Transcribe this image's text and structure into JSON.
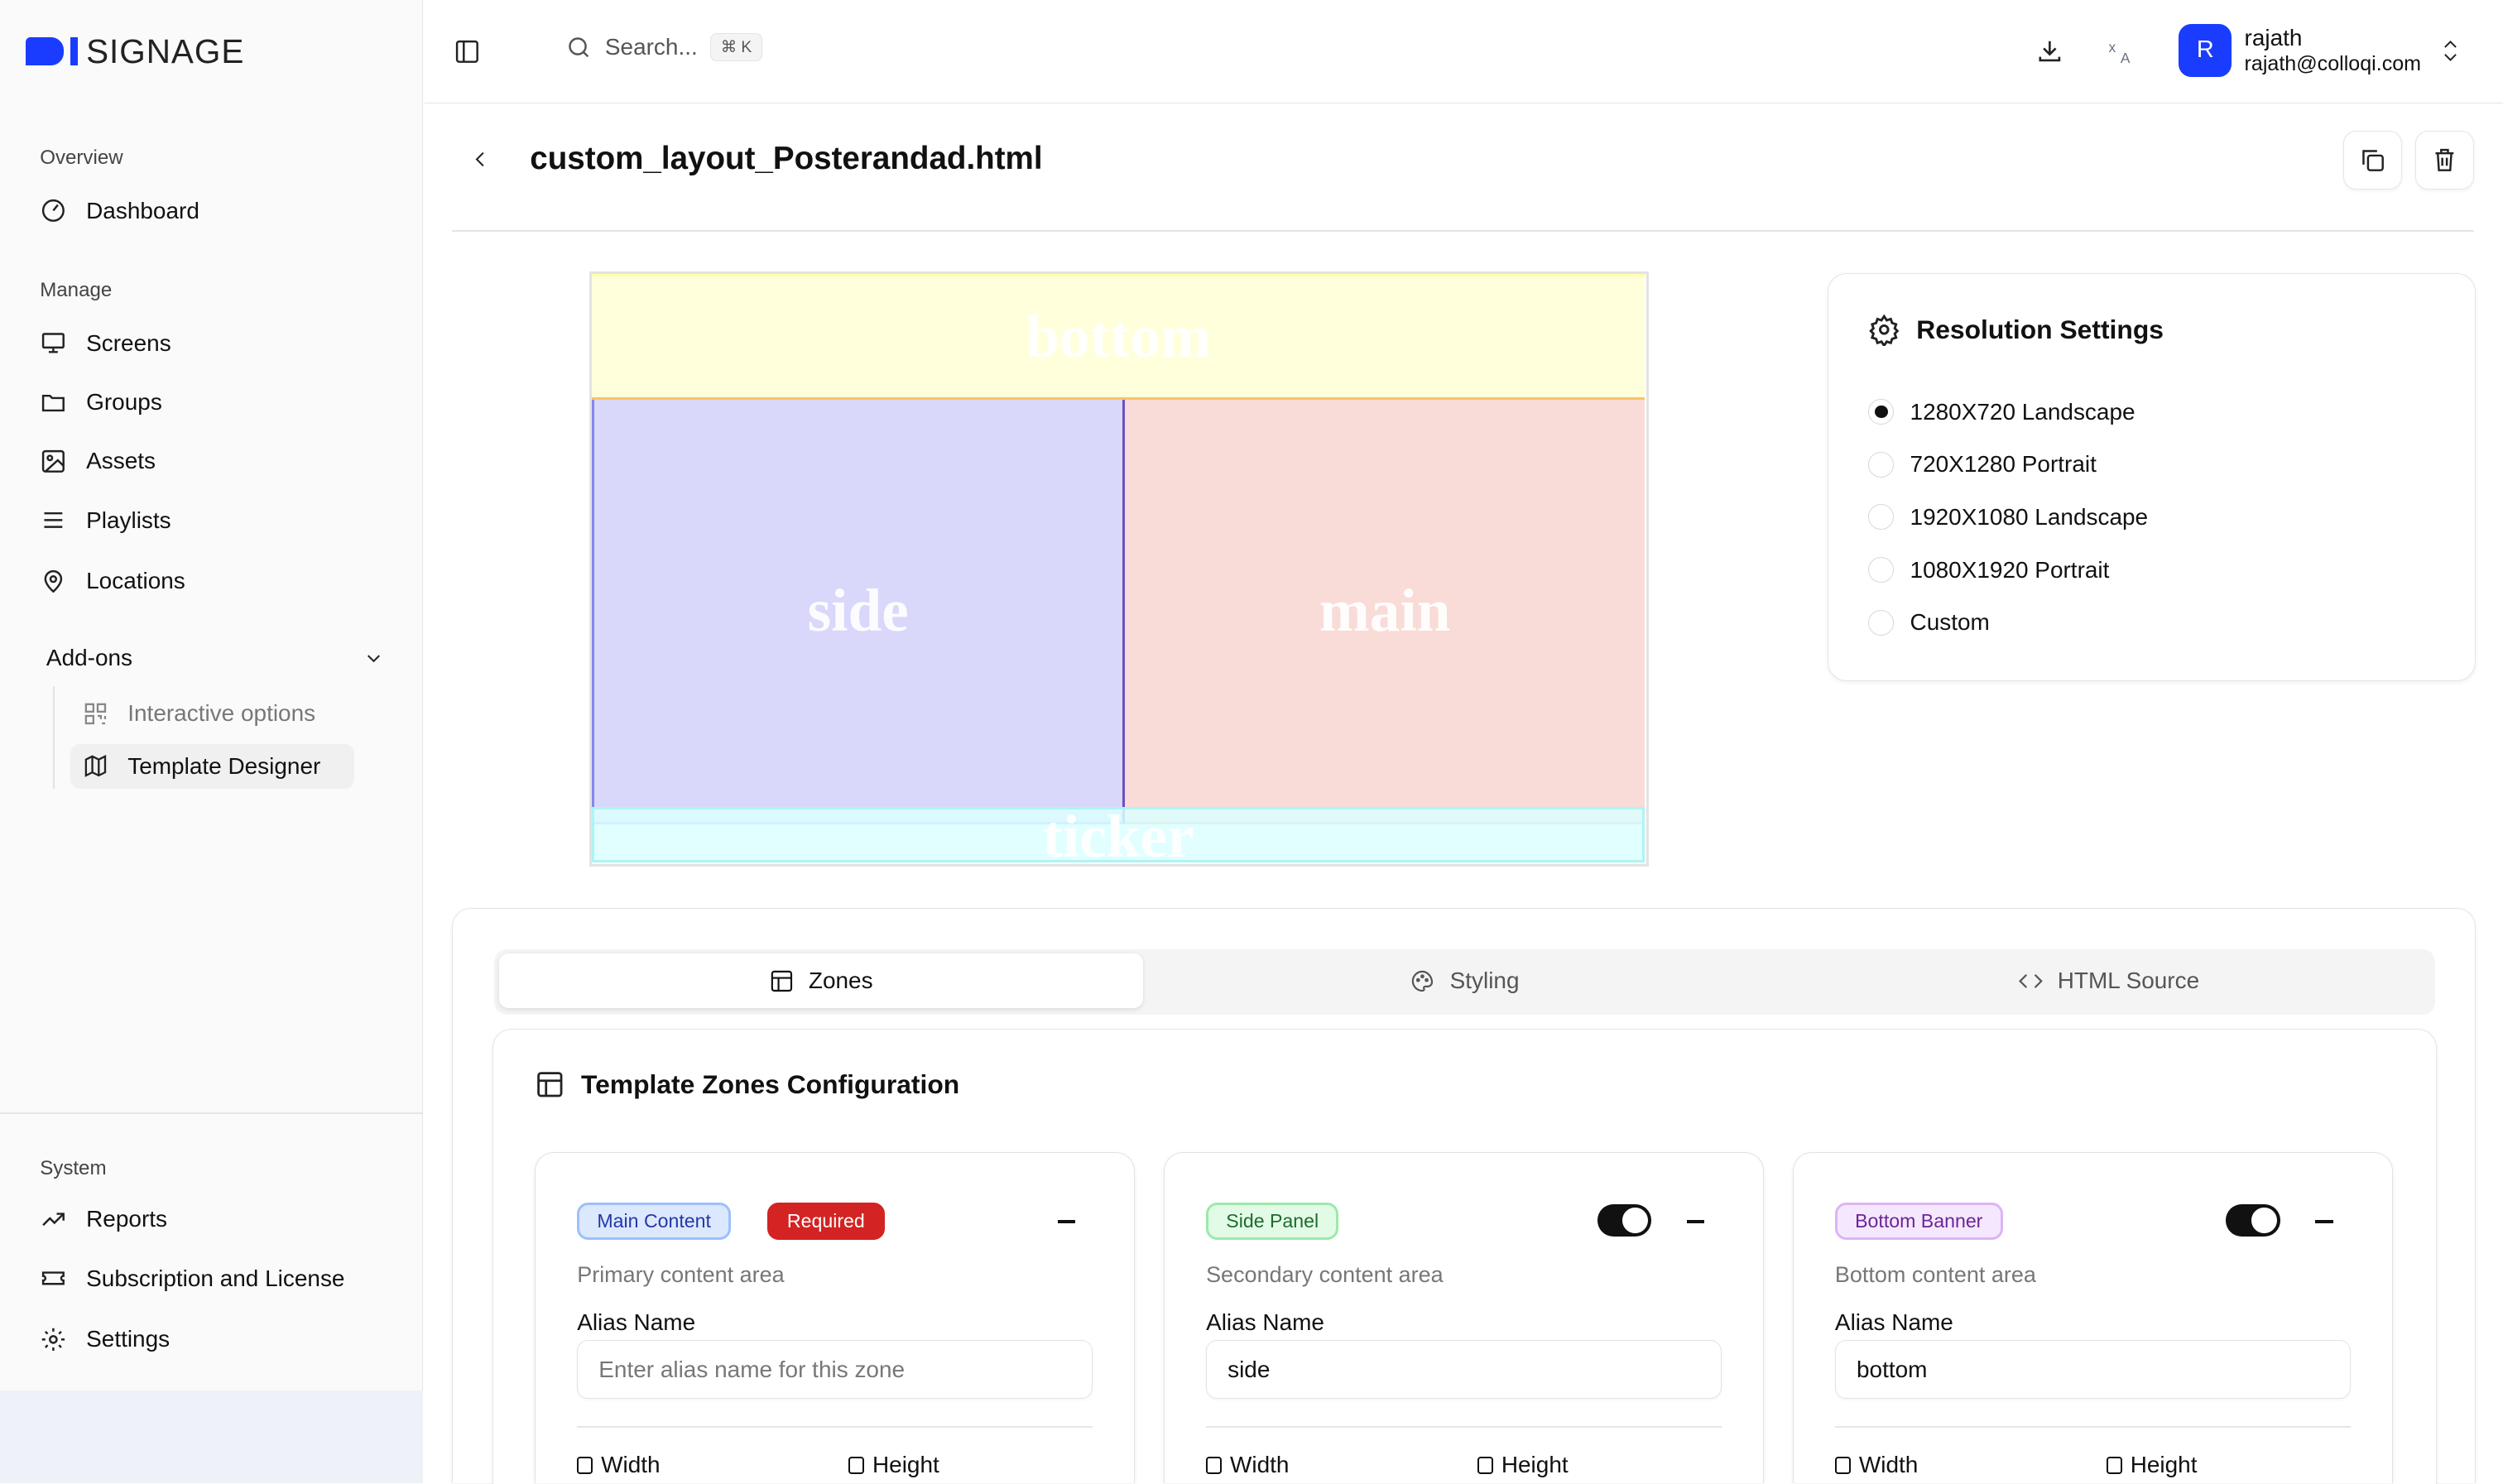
{
  "brand": {
    "logo_text": "SIGNAGE",
    "accent": "#1a3cff"
  },
  "sidebar": {
    "sections": {
      "overview": "Overview",
      "manage": "Manage",
      "system": "System"
    },
    "items": [
      {
        "label": "Dashboard",
        "icon": "gauge-icon"
      },
      {
        "label": "Screens",
        "icon": "monitor-icon"
      },
      {
        "label": "Groups",
        "icon": "folder-icon"
      },
      {
        "label": "Assets",
        "icon": "image-icon"
      },
      {
        "label": "Playlists",
        "icon": "list-icon"
      },
      {
        "label": "Locations",
        "icon": "map-pin-icon"
      }
    ],
    "addons": {
      "label": "Add-ons",
      "items": [
        {
          "label": "Interactive options",
          "icon": "qr-code-icon"
        },
        {
          "label": "Template Designer",
          "icon": "map-icon"
        }
      ]
    },
    "system_items": [
      {
        "label": "Reports",
        "icon": "trending-up-icon"
      },
      {
        "label": "Subscription and License",
        "icon": "ticket-icon"
      },
      {
        "label": "Settings",
        "icon": "gear-icon"
      }
    ]
  },
  "header": {
    "search_placeholder": "Search...",
    "shortcut": "⌘ K",
    "user": {
      "initial": "R",
      "name": "rajath",
      "email": "rajath@colloqi.com"
    }
  },
  "page": {
    "title": "custom_layout_Posterandad.html"
  },
  "preview": {
    "zones": {
      "bottom": "bottom",
      "side": "side",
      "main": "main",
      "ticker": "ticker"
    }
  },
  "resolution": {
    "title": "Resolution Settings",
    "options": [
      "1280X720 Landscape",
      "720X1280 Portrait",
      "1920X1080 Landscape",
      "1080X1920 Portrait",
      "Custom"
    ],
    "selected": "1280X720 Landscape"
  },
  "tabs": [
    {
      "label": "Zones",
      "active": true
    },
    {
      "label": "Styling"
    },
    {
      "label": "HTML Source"
    }
  ],
  "zones_config": {
    "title": "Template Zones Configuration",
    "alias_label": "Alias Name",
    "width_label": "Width",
    "height_label": "Height",
    "cards": [
      {
        "badge": "Main Content",
        "required": "Required",
        "description": "Primary content area",
        "alias_value": "",
        "alias_placeholder": "Enter alias name for this zone"
      },
      {
        "badge": "Side Panel",
        "description": "Secondary content area",
        "alias_value": "side",
        "enabled": true
      },
      {
        "badge": "Bottom Banner",
        "description": "Bottom content area",
        "alias_value": "bottom",
        "enabled": true
      }
    ]
  }
}
